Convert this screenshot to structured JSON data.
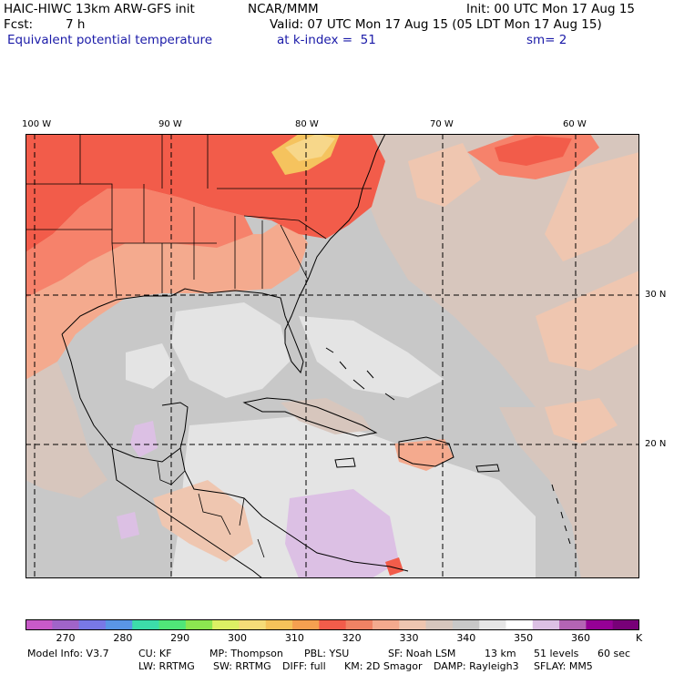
{
  "header": {
    "line1_left": "HAIC-HIWC 13km ARW-GFS init",
    "line1_mid": "NCAR/MMM",
    "line1_right": "Init: 00 UTC Mon 17 Aug 15",
    "fcst_label": "Fcst:",
    "fcst_value": "7 h",
    "valid": "Valid: 07 UTC Mon 17 Aug 15 (05 LDT Mon 17 Aug 15)",
    "field_name": "Equivalent potential temperature",
    "level": "at k-index =  51",
    "smoothing": "sm= 2"
  },
  "map": {
    "lon_labels": [
      "100 W",
      "90 W",
      "80 W",
      "70 W",
      "60 W"
    ],
    "lat_labels": [
      "30 N",
      "20 N"
    ],
    "colors": {
      "t330": "#f25c4a",
      "t335": "#f6826b",
      "t340": "#f4aa8e",
      "t345": "#efc6b0",
      "t350": "#d7c6bd",
      "t355": "#c8c8c8",
      "t360": "#e4e4e4",
      "t365": "#dcc0e4",
      "t325": "#f5c35e",
      "t320": "#f7d78a"
    }
  },
  "colorbar": {
    "ticks": [
      "270",
      "280",
      "290",
      "300",
      "310",
      "320",
      "330",
      "340",
      "350",
      "360"
    ],
    "unit": "K",
    "colors": [
      "#c85ac8",
      "#a064c8",
      "#7878e6",
      "#5a96e6",
      "#3cdcaa",
      "#50e678",
      "#8ce650",
      "#dcf064",
      "#f5dc78",
      "#f5c35a",
      "#f5a050",
      "#f25c4a",
      "#f08264",
      "#f4aa8e",
      "#efc6b0",
      "#d7c6bd",
      "#c8c8c8",
      "#e6e6e6",
      "#ffffff",
      "#dcc0e4",
      "#b464b4",
      "#960096",
      "#780078"
    ]
  },
  "footer": {
    "line1": [
      "Model Info: V3.7",
      "CU: KF",
      "MP: Thompson",
      "PBL: YSU",
      "SF: Noah LSM",
      "13 km",
      "51 levels",
      "60 sec"
    ],
    "line2": [
      "LW: RRTMG",
      "SW: RRTMG",
      "DIFF: full",
      "KM: 2D Smagor",
      "DAMP: Rayleigh3",
      "SFLAY: MM5"
    ]
  }
}
